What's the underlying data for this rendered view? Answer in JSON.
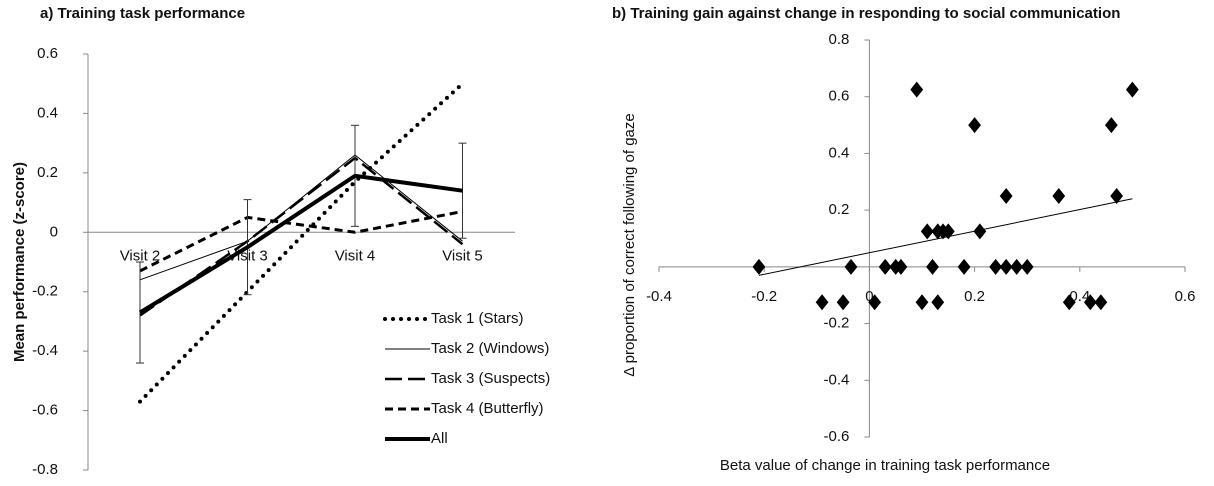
{
  "chart_data": [
    {
      "type": "line",
      "title": "a) Training task performance",
      "y_label": "Mean performance (z-score)",
      "categories": [
        "Visit 2",
        "Visit 3",
        "Visit 4",
        "Visit 5"
      ],
      "ylim": [
        -0.8,
        0.6
      ],
      "yticks": [
        -0.8,
        -0.6,
        -0.4,
        -0.2,
        0,
        0.2,
        0.4,
        0.6
      ],
      "grid": false,
      "legend": "lower right",
      "series": [
        {
          "name": "Task 1 (Stars)",
          "color": "#000000",
          "line_style": "dotted",
          "line_width": 4,
          "values": [
            -0.57,
            -0.2,
            0.17,
            0.5
          ]
        },
        {
          "name": "Task 2 (Windows)",
          "color": "#000000",
          "line_style": "solid",
          "line_width": 1,
          "values": [
            -0.16,
            -0.03,
            0.26,
            -0.03
          ]
        },
        {
          "name": "Task 3 (Suspects)",
          "color": "#000000",
          "line_style": "long-dash",
          "line_width": 2.5,
          "values": [
            -0.28,
            -0.03,
            0.25,
            -0.04
          ]
        },
        {
          "name": "Task 4 (Butterfly)",
          "color": "#000000",
          "line_style": "dash",
          "line_width": 3,
          "values": [
            -0.13,
            0.05,
            0.0,
            0.07
          ]
        },
        {
          "name": "All",
          "color": "#000000",
          "line_style": "solid",
          "line_width": 4,
          "values": [
            -0.27,
            -0.05,
            0.19,
            0.14
          ],
          "errors": [
            0.17,
            0.16,
            0.17,
            0.16
          ]
        }
      ]
    },
    {
      "type": "scatter",
      "title": "b) Training gain against change in responding to social communication",
      "x_label": "Beta value of change in training task performance",
      "y_label": "Δ proportion of correct following of gaze",
      "xlim": [
        -0.4,
        0.6
      ],
      "xticks": [
        -0.4,
        -0.2,
        0,
        0.2,
        0.4,
        0.6
      ],
      "ylim": [
        -0.6,
        0.8
      ],
      "yticks": [
        -0.6,
        -0.4,
        -0.2,
        0.2,
        0.4,
        0.6,
        0.8
      ],
      "grid": false,
      "color": "#000000",
      "marker": "diamond",
      "x": [
        -0.21,
        -0.09,
        -0.05,
        -0.035,
        0.01,
        0.09,
        0.03,
        0.05,
        0.06,
        0.1,
        0.11,
        0.12,
        0.13,
        0.13,
        0.14,
        0.15,
        0.18,
        0.2,
        0.21,
        0.24,
        0.26,
        0.26,
        0.28,
        0.3,
        0.36,
        0.38,
        0.42,
        0.44,
        0.46,
        0.47,
        0.5
      ],
      "y": [
        0,
        -0.125,
        -0.125,
        0,
        -0.125,
        0.625,
        0,
        0,
        0,
        -0.125,
        0.125,
        0,
        0.125,
        -0.125,
        0.125,
        0.125,
        0,
        0.5,
        0.125,
        0,
        0,
        0.25,
        0,
        0,
        0.25,
        -0.125,
        -0.125,
        -0.125,
        0.5,
        0.25,
        0.625
      ],
      "trendline": {
        "x": [
          -0.21,
          0.5
        ],
        "y": [
          -0.03,
          0.24
        ]
      }
    }
  ]
}
